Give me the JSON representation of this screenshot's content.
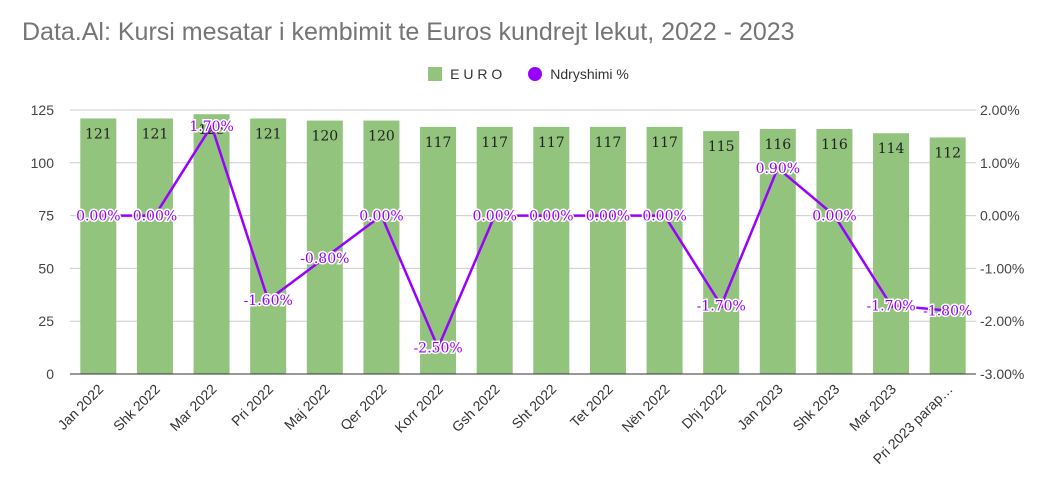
{
  "chart_data": {
    "type": "bar",
    "title": "Data.Al: Kursi mesatar i kembimit te Euros kundrejt lekut, 2022 - 2023",
    "categories": [
      "Jan 2022",
      "Shk 2022",
      "Mar 2022",
      "Pri 2022",
      "Maj 2022",
      "Qer 2022",
      "Korr 2022",
      "Gsh 2022",
      "Sht 2022",
      "Tet 2022",
      "Nën 2022",
      "Dhj 2022",
      "Jan 2023",
      "Shk 2023",
      "Mar 2023",
      "Pri 2023 parap…"
    ],
    "series": [
      {
        "name": "E U R O",
        "type": "bar",
        "axis": "left",
        "color": "#93c47d",
        "values": [
          121,
          121,
          123,
          121,
          120,
          120,
          117,
          117,
          117,
          117,
          117,
          115,
          116,
          116,
          114,
          112
        ],
        "labels": [
          "121",
          "121",
          "123",
          "121",
          "120",
          "120",
          "117",
          "117",
          "117",
          "117",
          "117",
          "115",
          "116",
          "116",
          "114",
          "112"
        ]
      },
      {
        "name": "Ndryshimi %",
        "type": "line",
        "axis": "right",
        "color": "#9900ff",
        "values": [
          0.0,
          0.0,
          1.7,
          -1.6,
          -0.8,
          0.0,
          -2.5,
          0.0,
          0.0,
          0.0,
          0.0,
          -1.7,
          0.9,
          0.0,
          -1.7,
          -1.8
        ],
        "labels": [
          "0.00%",
          "0.00%",
          "1.70%",
          "-1.60%",
          "-0.80%",
          "0.00%",
          "-2.50%",
          "0.00%",
          "0.00%",
          "0.00%",
          "0.00%",
          "-1.70%",
          "0.90%",
          "0.00%",
          "-1.70%",
          "-1.80%"
        ]
      }
    ],
    "ylim_left": [
      0,
      125
    ],
    "yticks_left": [
      "0",
      "25",
      "50",
      "75",
      "100",
      "125"
    ],
    "ylim_right": [
      -3.0,
      2.0
    ],
    "yticks_right": [
      "-3.00%",
      "-2.00%",
      "-1.00%",
      "0.00%",
      "1.00%",
      "2.00%"
    ],
    "grid": true,
    "legend_position": "top-center"
  }
}
